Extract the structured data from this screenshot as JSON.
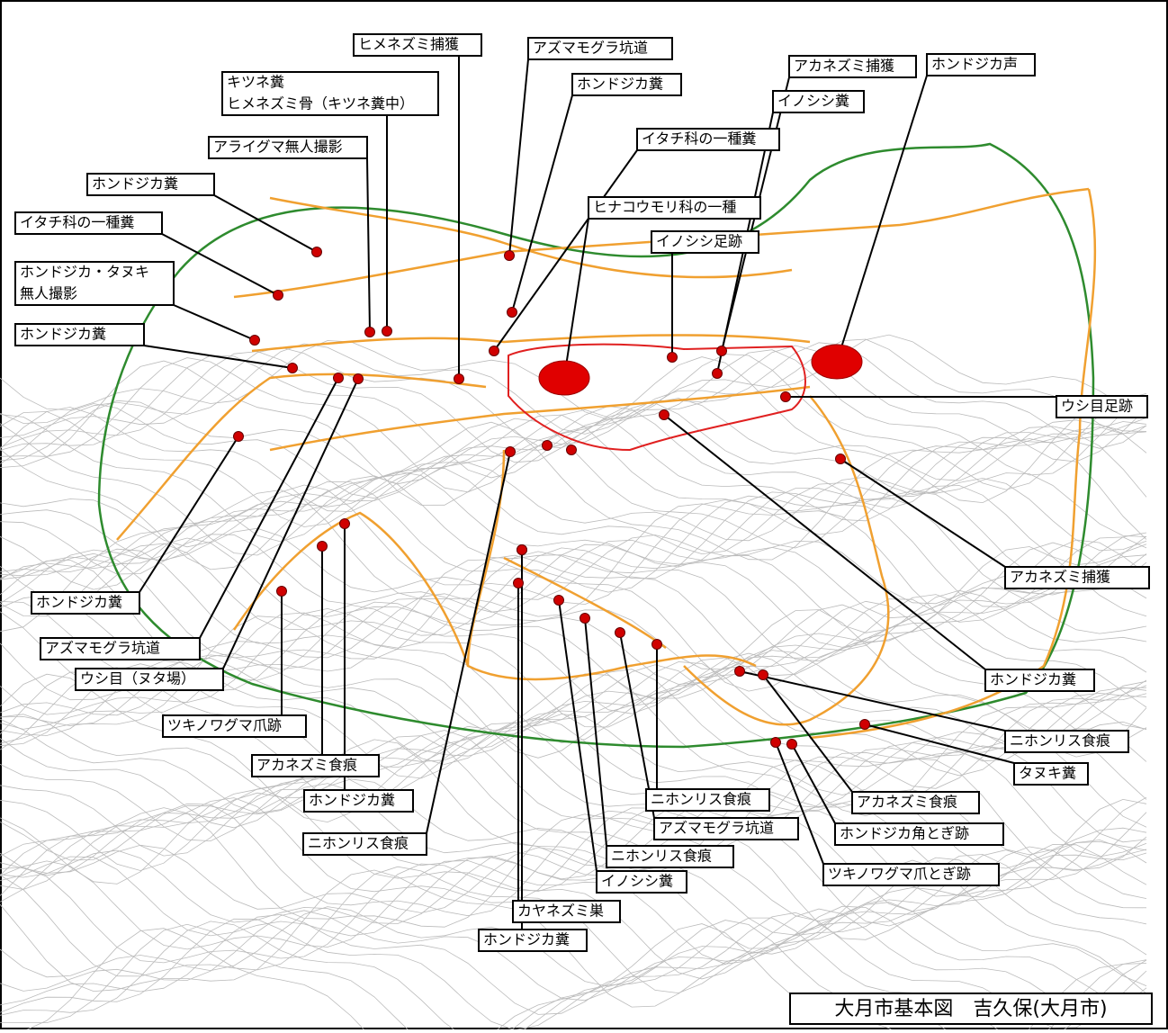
{
  "map": {
    "labels": [
      {
        "lines": [
          "ヒメネズミ捕獲"
        ]
      },
      {
        "lines": [
          "アズマモグラ坑道"
        ]
      },
      {
        "lines": [
          "キツネ糞",
          "ヒメネズミ骨（キツネ糞中）"
        ]
      },
      {
        "lines": [
          "ホンドジカ糞"
        ]
      },
      {
        "lines": [
          "アカネズミ捕獲"
        ]
      },
      {
        "lines": [
          "ホンドジカ声"
        ]
      },
      {
        "lines": [
          "イノシシ糞"
        ]
      },
      {
        "lines": [
          "イタチ科の一種糞"
        ]
      },
      {
        "lines": [
          "アライグマ無人撮影"
        ]
      },
      {
        "lines": [
          "ホンドジカ糞"
        ]
      },
      {
        "lines": [
          "ヒナコウモリ科の一種"
        ]
      },
      {
        "lines": [
          "イタチ科の一種糞"
        ]
      },
      {
        "lines": [
          "イノシシ足跡"
        ]
      },
      {
        "lines": [
          "ホンドジカ・タヌキ",
          "無人撮影"
        ]
      },
      {
        "lines": [
          "ホンドジカ糞"
        ]
      },
      {
        "lines": [
          "ウシ目足跡"
        ]
      },
      {
        "lines": [
          "ホンドジカ糞"
        ]
      },
      {
        "lines": [
          "アカネズミ捕獲"
        ]
      },
      {
        "lines": [
          "アズマモグラ坑道"
        ]
      },
      {
        "lines": [
          "ウシ目（ヌタ場）"
        ]
      },
      {
        "lines": [
          "ホンドジカ糞"
        ]
      },
      {
        "lines": [
          "ツキノワグマ爪跡"
        ]
      },
      {
        "lines": [
          "ニホンリス食痕"
        ]
      },
      {
        "lines": [
          "アカネズミ食痕"
        ]
      },
      {
        "lines": [
          "タヌキ糞"
        ]
      },
      {
        "lines": [
          "ホンドジカ糞"
        ]
      },
      {
        "lines": [
          "ニホンリス食痕"
        ]
      },
      {
        "lines": [
          "アカネズミ食痕"
        ]
      },
      {
        "lines": [
          "アズマモグラ坑道"
        ]
      },
      {
        "lines": [
          "ニホンリス食痕"
        ]
      },
      {
        "lines": [
          "ホンドジカ角とぎ跡"
        ]
      },
      {
        "lines": [
          "ニホンリス食痕"
        ]
      },
      {
        "lines": [
          "ツキノワグマ爪とぎ跡"
        ]
      },
      {
        "lines": [
          "イノシシ糞"
        ]
      },
      {
        "lines": [
          "カヤネズミ巣"
        ]
      },
      {
        "lines": [
          "ホンドジカ糞"
        ]
      }
    ],
    "caption": "大月市基本図　吉久保(大月市)"
  }
}
